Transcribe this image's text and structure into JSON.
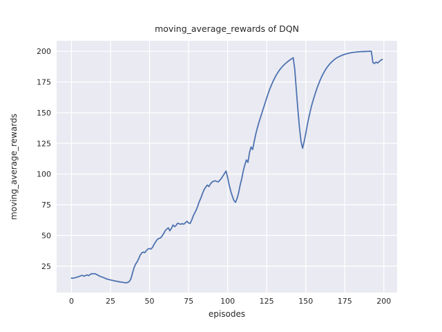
{
  "figure": {
    "title": "moving_average_rewards of DQN",
    "xlabel": "episodes",
    "ylabel": "moving_average_rewards"
  },
  "chart_data": {
    "type": "line",
    "title": "moving_average_rewards of DQN",
    "xlabel": "episodes",
    "ylabel": "moving_average_rewards",
    "xlim": [
      -9.5,
      208.5
    ],
    "ylim": [
      3.5,
      208.5
    ],
    "xticks": [
      0,
      25,
      50,
      75,
      100,
      125,
      150,
      175,
      200
    ],
    "yticks": [
      25,
      50,
      75,
      100,
      125,
      150,
      175,
      200
    ],
    "grid": true,
    "legend": "none",
    "style": {
      "axes_background": "#eaeaf2",
      "grid_color": "#ffffff",
      "line_color": "#4c72b0",
      "text_color": "#262626",
      "figure_background": "#ffffff",
      "line_width": 1.8
    },
    "series": [
      {
        "name": "moving_average_rewards",
        "points": [
          [
            0,
            15.3
          ],
          [
            1,
            15.2
          ],
          [
            2,
            15.5
          ],
          [
            3,
            15.9
          ],
          [
            4,
            16.2
          ],
          [
            5,
            16.7
          ],
          [
            6,
            17.2
          ],
          [
            7,
            17.5
          ],
          [
            8,
            16.8
          ],
          [
            9,
            17.4
          ],
          [
            10,
            17.9
          ],
          [
            11,
            17.3
          ],
          [
            12,
            18.2
          ],
          [
            13,
            19.0
          ],
          [
            14,
            18.7
          ],
          [
            15,
            18.9
          ],
          [
            16,
            18.3
          ],
          [
            17,
            17.6
          ],
          [
            18,
            16.9
          ],
          [
            19,
            16.4
          ],
          [
            20,
            16.0
          ],
          [
            21,
            15.4
          ],
          [
            22,
            14.9
          ],
          [
            23,
            14.4
          ],
          [
            24,
            14.1
          ],
          [
            25,
            13.8
          ],
          [
            26,
            13.5
          ],
          [
            27,
            13.2
          ],
          [
            28,
            12.9
          ],
          [
            29,
            12.7
          ],
          [
            30,
            12.4
          ],
          [
            31,
            12.2
          ],
          [
            32,
            12.0
          ],
          [
            33,
            11.8
          ],
          [
            34,
            11.6
          ],
          [
            35,
            11.5
          ],
          [
            36,
            11.7
          ],
          [
            37,
            12.5
          ],
          [
            38,
            14.5
          ],
          [
            39,
            19.0
          ],
          [
            40,
            23.5
          ],
          [
            41,
            26.5
          ],
          [
            42,
            28.5
          ],
          [
            43,
            31.0
          ],
          [
            44,
            34.0
          ],
          [
            45,
            35.8
          ],
          [
            46,
            36.5
          ],
          [
            47,
            36.0
          ],
          [
            48,
            37.8
          ],
          [
            49,
            39.0
          ],
          [
            50,
            39.3
          ],
          [
            51,
            39.0
          ],
          [
            52,
            40.5
          ],
          [
            53,
            43.0
          ],
          [
            54,
            45.0
          ],
          [
            55,
            46.8
          ],
          [
            56,
            47.6
          ],
          [
            57,
            48.0
          ],
          [
            58,
            49.5
          ],
          [
            59,
            51.5
          ],
          [
            60,
            53.8
          ],
          [
            61,
            55.2
          ],
          [
            62,
            56.2
          ],
          [
            63,
            53.8
          ],
          [
            64,
            55.8
          ],
          [
            65,
            58.5
          ],
          [
            66,
            57.2
          ],
          [
            67,
            58.2
          ],
          [
            68,
            60.0
          ],
          [
            69,
            59.5
          ],
          [
            70,
            59.2
          ],
          [
            71,
            59.6
          ],
          [
            72,
            59.2
          ],
          [
            73,
            60.5
          ],
          [
            74,
            61.5
          ],
          [
            75,
            60.2
          ],
          [
            76,
            59.8
          ],
          [
            77,
            62.5
          ],
          [
            78,
            66.0
          ],
          [
            79,
            68.5
          ],
          [
            80,
            71.0
          ],
          [
            81,
            74.5
          ],
          [
            82,
            78.0
          ],
          [
            83,
            81.0
          ],
          [
            84,
            84.5
          ],
          [
            85,
            87.5
          ],
          [
            86,
            89.5
          ],
          [
            87,
            91.0
          ],
          [
            88,
            89.8
          ],
          [
            89,
            92.0
          ],
          [
            90,
            93.5
          ],
          [
            91,
            94.2
          ],
          [
            92,
            94.5
          ],
          [
            93,
            94.0
          ],
          [
            94,
            93.6
          ],
          [
            95,
            95.0
          ],
          [
            96,
            96.5
          ],
          [
            97,
            98.5
          ],
          [
            98,
            100.5
          ],
          [
            99,
            102.5
          ],
          [
            100,
            97.0
          ],
          [
            101,
            91.0
          ],
          [
            102,
            86.0
          ],
          [
            103,
            82.0
          ],
          [
            104,
            78.5
          ],
          [
            105,
            77.0
          ],
          [
            106,
            80.0
          ],
          [
            107,
            84.5
          ],
          [
            108,
            91.0
          ],
          [
            109,
            96.0
          ],
          [
            110,
            102.5
          ],
          [
            111,
            107.5
          ],
          [
            112,
            111.5
          ],
          [
            113,
            109.5
          ],
          [
            114,
            117.5
          ],
          [
            115,
            122.0
          ],
          [
            116,
            120.0
          ],
          [
            117,
            126.5
          ],
          [
            118,
            132.5
          ],
          [
            119,
            137.5
          ],
          [
            120,
            142.0
          ],
          [
            121,
            146.0
          ],
          [
            122,
            150.0
          ],
          [
            123,
            154.0
          ],
          [
            124,
            158.0
          ],
          [
            125,
            162.0
          ],
          [
            126,
            165.8
          ],
          [
            127,
            169.3
          ],
          [
            128,
            172.4
          ],
          [
            129,
            175.3
          ],
          [
            130,
            177.9
          ],
          [
            131,
            180.3
          ],
          [
            132,
            182.4
          ],
          [
            133,
            184.3
          ],
          [
            134,
            186.0
          ],
          [
            135,
            187.5
          ],
          [
            136,
            188.8
          ],
          [
            137,
            190.0
          ],
          [
            138,
            191.1
          ],
          [
            139,
            192.1
          ],
          [
            140,
            193.0
          ],
          [
            141,
            193.9
          ],
          [
            142,
            194.7
          ],
          [
            143,
            185.0
          ],
          [
            144,
            168.0
          ],
          [
            145,
            152.0
          ],
          [
            146,
            137.5
          ],
          [
            147,
            126.5
          ],
          [
            148,
            121.0
          ],
          [
            149,
            126.5
          ],
          [
            150,
            133.0
          ],
          [
            151,
            140.0
          ],
          [
            152,
            146.2
          ],
          [
            153,
            151.8
          ],
          [
            154,
            156.8
          ],
          [
            155,
            161.2
          ],
          [
            156,
            165.3
          ],
          [
            157,
            169.1
          ],
          [
            158,
            172.6
          ],
          [
            159,
            175.8
          ],
          [
            160,
            178.7
          ],
          [
            161,
            181.3
          ],
          [
            162,
            183.6
          ],
          [
            163,
            185.7
          ],
          [
            164,
            187.5
          ],
          [
            165,
            189.1
          ],
          [
            166,
            190.5
          ],
          [
            167,
            191.8
          ],
          [
            168,
            192.9
          ],
          [
            169,
            193.9
          ],
          [
            170,
            194.7
          ],
          [
            171,
            195.4
          ],
          [
            172,
            196.0
          ],
          [
            173,
            196.6
          ],
          [
            174,
            197.1
          ],
          [
            175,
            197.5
          ],
          [
            176,
            197.9
          ],
          [
            177,
            198.2
          ],
          [
            178,
            198.5
          ],
          [
            179,
            198.8
          ],
          [
            180,
            199.0
          ],
          [
            181,
            199.2
          ],
          [
            182,
            199.3
          ],
          [
            183,
            199.45
          ],
          [
            184,
            199.55
          ],
          [
            185,
            199.65
          ],
          [
            186,
            199.7
          ],
          [
            187,
            199.75
          ],
          [
            188,
            199.8
          ],
          [
            189,
            199.85
          ],
          [
            190,
            199.9
          ],
          [
            191,
            199.95
          ],
          [
            192,
            200.0
          ],
          [
            193,
            190.8
          ],
          [
            194,
            190.0
          ],
          [
            195,
            191.2
          ],
          [
            196,
            190.4
          ],
          [
            197,
            191.5
          ],
          [
            198,
            192.6
          ],
          [
            199,
            193.4
          ]
        ]
      }
    ]
  }
}
